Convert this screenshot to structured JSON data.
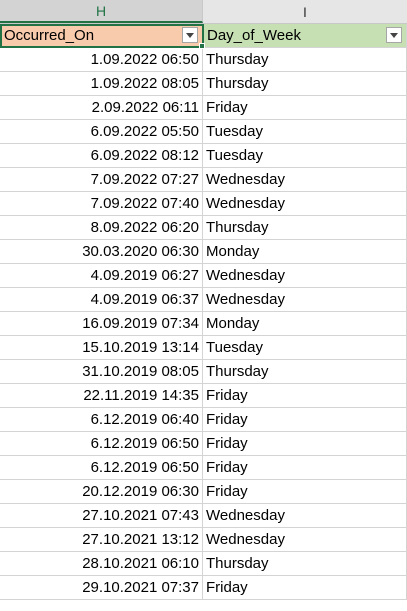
{
  "columns": [
    {
      "letter": "H",
      "selected": true
    },
    {
      "letter": "I",
      "selected": false
    }
  ],
  "header": {
    "h_label": "Occurred_On",
    "i_label": "Day_of_Week",
    "h_color": "#f8cbad",
    "i_color": "#c6e0b4",
    "filter_icon": "chevron-down-icon"
  },
  "accent_color": "#217346",
  "rows": [
    {
      "occurred_on": "1.09.2022 06:50",
      "day": "Thursday"
    },
    {
      "occurred_on": "1.09.2022 08:05",
      "day": "Thursday"
    },
    {
      "occurred_on": "2.09.2022 06:11",
      "day": "Friday"
    },
    {
      "occurred_on": "6.09.2022 05:50",
      "day": "Tuesday"
    },
    {
      "occurred_on": "6.09.2022 08:12",
      "day": "Tuesday"
    },
    {
      "occurred_on": "7.09.2022 07:27",
      "day": "Wednesday"
    },
    {
      "occurred_on": "7.09.2022 07:40",
      "day": "Wednesday"
    },
    {
      "occurred_on": "8.09.2022 06:20",
      "day": "Thursday"
    },
    {
      "occurred_on": "30.03.2020 06:30",
      "day": "Monday"
    },
    {
      "occurred_on": "4.09.2019 06:27",
      "day": "Wednesday"
    },
    {
      "occurred_on": "4.09.2019 06:37",
      "day": "Wednesday"
    },
    {
      "occurred_on": "16.09.2019 07:34",
      "day": "Monday"
    },
    {
      "occurred_on": "15.10.2019 13:14",
      "day": "Tuesday"
    },
    {
      "occurred_on": "31.10.2019 08:05",
      "day": "Thursday"
    },
    {
      "occurred_on": "22.11.2019 14:35",
      "day": "Friday"
    },
    {
      "occurred_on": "6.12.2019 06:40",
      "day": "Friday"
    },
    {
      "occurred_on": "6.12.2019 06:50",
      "day": "Friday"
    },
    {
      "occurred_on": "6.12.2019 06:50",
      "day": "Friday"
    },
    {
      "occurred_on": "20.12.2019 06:30",
      "day": "Friday"
    },
    {
      "occurred_on": "27.10.2021 07:43",
      "day": "Wednesday"
    },
    {
      "occurred_on": "27.10.2021 13:12",
      "day": "Wednesday"
    },
    {
      "occurred_on": "28.10.2021 06:10",
      "day": "Thursday"
    },
    {
      "occurred_on": "29.10.2021 07:37",
      "day": "Friday"
    }
  ]
}
